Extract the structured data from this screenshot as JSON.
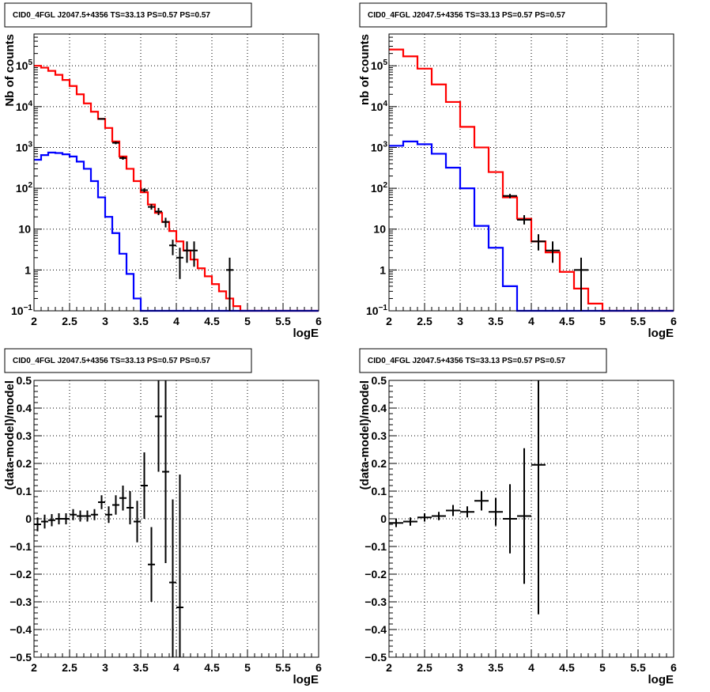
{
  "chart_data": [
    {
      "type": "histogram",
      "title": "CID0_4FGL J2047.5+4356 TS=33.13 PS=0.57 PS=0.57",
      "xlabel": "logE",
      "ylabel": "Nb of counts",
      "xlim": [
        2,
        6
      ],
      "ylim": [
        0.1,
        600000
      ],
      "yscale": "log",
      "grid": true,
      "xticks": [
        "2",
        "2.5",
        "3",
        "3.5",
        "4",
        "4.5",
        "5",
        "5.5",
        "6"
      ],
      "yticks": [
        {
          "v": 0.1,
          "t": "10",
          "sup": "−1"
        },
        {
          "v": 1,
          "t": "1",
          "sup": ""
        },
        {
          "v": 10,
          "t": "10",
          "sup": ""
        },
        {
          "v": 100,
          "t": "10",
          "sup": "2"
        },
        {
          "v": 1000,
          "t": "10",
          "sup": "3"
        },
        {
          "v": 10000,
          "t": "10",
          "sup": "4"
        },
        {
          "v": 100000,
          "t": "10",
          "sup": "5"
        }
      ],
      "bin_edges": [
        2.0,
        2.1,
        2.2,
        2.3,
        2.4,
        2.5,
        2.6,
        2.7,
        2.8,
        2.9,
        3.0,
        3.1,
        3.2,
        3.3,
        3.4,
        3.5,
        3.6,
        3.7,
        3.8,
        3.9,
        4.0,
        4.1,
        4.2,
        4.3,
        4.4,
        4.5,
        4.6,
        4.7,
        4.8,
        4.9,
        5.0,
        5.1,
        5.2,
        5.3,
        5.4,
        5.5,
        5.6,
        5.7,
        5.8,
        5.9,
        6.0
      ],
      "series": [
        {
          "name": "",
          "color": "#ff0000",
          "values": [
            100000,
            90000,
            75000,
            60000,
            45000,
            32000,
            20000,
            12000,
            7500,
            5000,
            3000,
            1400,
            600,
            300,
            150,
            80,
            40,
            25,
            15,
            9,
            5,
            3,
            1.8,
            1.1,
            0.7,
            0.45,
            0.3,
            0.2,
            0.13,
            0.1,
            0.1,
            0.1,
            0.1,
            0.1,
            0.1,
            0.1,
            0.1,
            0.1,
            0.1,
            0.1
          ]
        },
        {
          "name": "",
          "color": "#0000ff",
          "values": [
            500,
            650,
            750,
            730,
            680,
            600,
            450,
            300,
            150,
            60,
            20,
            8,
            2.5,
            0.8,
            0.2,
            0.1,
            0.1,
            0.1,
            0.1,
            0.1,
            0.1,
            0.1,
            0.1,
            0.1,
            0.1,
            0.1,
            0.1,
            0.1,
            0.1,
            0.1,
            0.1,
            0.1,
            0.1,
            0.1,
            0.1,
            0.1,
            0.1,
            0.1,
            0.1,
            0.1
          ]
        }
      ],
      "points": [
        {
          "x": 2.95,
          "y": 5000,
          "xerr": 0.05,
          "ylo": 4800,
          "yhi": 5200
        },
        {
          "x": 3.15,
          "y": 1300,
          "xerr": 0.05,
          "ylo": 1200,
          "yhi": 1400
        },
        {
          "x": 3.25,
          "y": 550,
          "xerr": 0.05,
          "ylo": 500,
          "yhi": 600
        },
        {
          "x": 3.55,
          "y": 90,
          "xerr": 0.05,
          "ylo": 80,
          "yhi": 100
        },
        {
          "x": 3.65,
          "y": 35,
          "xerr": 0.05,
          "ylo": 30,
          "yhi": 41
        },
        {
          "x": 3.75,
          "y": 27,
          "xerr": 0.05,
          "ylo": 22,
          "yhi": 33
        },
        {
          "x": 3.85,
          "y": 15,
          "xerr": 0.05,
          "ylo": 11,
          "yhi": 19
        },
        {
          "x": 3.95,
          "y": 4,
          "xerr": 0.05,
          "ylo": 2.3,
          "yhi": 5.5
        },
        {
          "x": 4.05,
          "y": 2,
          "xerr": 0.05,
          "ylo": 0.6,
          "yhi": 3.5
        },
        {
          "x": 4.15,
          "y": 3,
          "xerr": 0.05,
          "ylo": 1.5,
          "yhi": 5
        },
        {
          "x": 4.25,
          "y": 3,
          "xerr": 0.05,
          "ylo": 1.2,
          "yhi": 5
        },
        {
          "x": 4.75,
          "y": 1,
          "xerr": 0.05,
          "ylo": 0.1,
          "yhi": 2
        }
      ]
    },
    {
      "type": "histogram",
      "title": "CID0_4FGL J2047.5+4356 TS=33.13 PS=0.57 PS=0.57",
      "xlabel": "logE",
      "ylabel": "nb of counts",
      "xlim": [
        2,
        6
      ],
      "ylim": [
        0.1,
        600000
      ],
      "yscale": "log",
      "grid": true,
      "xticks": [
        "2",
        "2.5",
        "3",
        "3.5",
        "4",
        "4.5",
        "5",
        "5.5",
        "6"
      ],
      "yticks": [
        {
          "v": 0.1,
          "t": "10",
          "sup": "−1"
        },
        {
          "v": 1,
          "t": "1",
          "sup": ""
        },
        {
          "v": 10,
          "t": "10",
          "sup": ""
        },
        {
          "v": 100,
          "t": "10",
          "sup": "2"
        },
        {
          "v": 1000,
          "t": "10",
          "sup": "3"
        },
        {
          "v": 10000,
          "t": "10",
          "sup": "4"
        },
        {
          "v": 100000,
          "t": "10",
          "sup": "5"
        }
      ],
      "bin_edges": [
        2.0,
        2.2,
        2.4,
        2.6,
        2.8,
        3.0,
        3.2,
        3.4,
        3.6,
        3.8,
        4.0,
        4.2,
        4.4,
        4.6,
        4.8,
        5.0,
        5.2,
        5.4,
        5.6,
        5.8,
        6.0
      ],
      "series": [
        {
          "name": "",
          "color": "#ff0000",
          "values": [
            250000,
            170000,
            85000,
            35000,
            13000,
            3200,
            1000,
            250,
            60,
            18,
            5,
            2.7,
            0.9,
            0.35,
            0.15,
            0.1,
            0.1,
            0.1,
            0.1,
            0.1
          ]
        },
        {
          "name": "",
          "color": "#0000ff",
          "values": [
            1100,
            1400,
            1200,
            700,
            320,
            100,
            12,
            3.5,
            0.4,
            0.1,
            0.1,
            0.1,
            0.1,
            0.1,
            0.1,
            0.1,
            0.1,
            0.1,
            0.1,
            0.1
          ]
        }
      ],
      "points": [
        {
          "x": 3.7,
          "y": 65,
          "xerr": 0.1,
          "ylo": 57,
          "yhi": 73
        },
        {
          "x": 3.9,
          "y": 17,
          "xerr": 0.1,
          "ylo": 13,
          "yhi": 22
        },
        {
          "x": 4.1,
          "y": 5,
          "xerr": 0.1,
          "ylo": 3,
          "yhi": 7.5
        },
        {
          "x": 4.3,
          "y": 3,
          "xerr": 0.1,
          "ylo": 1.5,
          "yhi": 5
        },
        {
          "x": 4.7,
          "y": 1,
          "xerr": 0.1,
          "ylo": 0.1,
          "yhi": 2
        }
      ]
    },
    {
      "type": "scatter",
      "title": "CID0_4FGL J2047.5+4356 TS=33.13 PS=0.57 PS=0.57",
      "xlabel": "logE",
      "ylabel": "(data-model)/model",
      "xlim": [
        2,
        6
      ],
      "ylim": [
        -0.5,
        0.5
      ],
      "grid": true,
      "xticks": [
        "2",
        "2.5",
        "3",
        "3.5",
        "4",
        "4.5",
        "5",
        "5.5",
        "6"
      ],
      "yticks": [
        "−0.5",
        "−0.4",
        "−0.3",
        "−0.2",
        "−0.1",
        "0",
        "0.1",
        "0.2",
        "0.3",
        "0.4",
        "0.5"
      ],
      "points": [
        {
          "x": 2.05,
          "y": -0.02,
          "xerr": 0.05,
          "yerr": 0.025
        },
        {
          "x": 2.15,
          "y": -0.01,
          "xerr": 0.05,
          "yerr": 0.025
        },
        {
          "x": 2.25,
          "y": -0.005,
          "xerr": 0.05,
          "yerr": 0.022
        },
        {
          "x": 2.35,
          "y": 0.0,
          "xerr": 0.05,
          "yerr": 0.02
        },
        {
          "x": 2.45,
          "y": 0.0,
          "xerr": 0.05,
          "yerr": 0.02
        },
        {
          "x": 2.55,
          "y": 0.015,
          "xerr": 0.05,
          "yerr": 0.02
        },
        {
          "x": 2.65,
          "y": 0.01,
          "xerr": 0.05,
          "yerr": 0.02
        },
        {
          "x": 2.75,
          "y": 0.01,
          "xerr": 0.05,
          "yerr": 0.02
        },
        {
          "x": 2.85,
          "y": 0.015,
          "xerr": 0.05,
          "yerr": 0.02
        },
        {
          "x": 2.95,
          "y": 0.06,
          "xerr": 0.05,
          "yerr": 0.025
        },
        {
          "x": 3.05,
          "y": 0.015,
          "xerr": 0.05,
          "yerr": 0.03
        },
        {
          "x": 3.15,
          "y": 0.05,
          "xerr": 0.05,
          "yerr": 0.035
        },
        {
          "x": 3.25,
          "y": 0.075,
          "xerr": 0.05,
          "yerr": 0.045
        },
        {
          "x": 3.35,
          "y": 0.04,
          "xerr": 0.05,
          "yerr": 0.06
        },
        {
          "x": 3.45,
          "y": -0.01,
          "xerr": 0.05,
          "yerr": 0.075
        },
        {
          "x": 3.55,
          "y": 0.12,
          "xerr": 0.05,
          "yerr": 0.12
        },
        {
          "x": 3.65,
          "y": -0.165,
          "xerr": 0.05,
          "yerr": 0.135
        },
        {
          "x": 3.75,
          "y": 0.37,
          "xerr": 0.05,
          "yerr": 0.2
        },
        {
          "x": 3.85,
          "y": 0.17,
          "xerr": 0.05,
          "yerr": 0.33
        },
        {
          "x": 3.95,
          "y": -0.23,
          "xerr": 0.05,
          "yerr": 0.3
        },
        {
          "x": 4.05,
          "y": -0.32,
          "xerr": 0.05,
          "yerr": 0.48
        }
      ]
    },
    {
      "type": "scatter",
      "title": "CID0_4FGL J2047.5+4356 TS=33.13 PS=0.57 PS=0.57",
      "xlabel": "logE",
      "ylabel": "(data-model)/model",
      "xlim": [
        2,
        6
      ],
      "ylim": [
        -0.5,
        0.5
      ],
      "grid": true,
      "xticks": [
        "2",
        "2.5",
        "3",
        "3.5",
        "4",
        "4.5",
        "5",
        "5.5",
        "6"
      ],
      "yticks": [
        "−0.5",
        "−0.4",
        "−0.3",
        "−0.2",
        "−0.1",
        "0",
        "0.1",
        "0.2",
        "0.3",
        "0.4",
        "0.5"
      ],
      "points": [
        {
          "x": 2.1,
          "y": -0.015,
          "xerr": 0.1,
          "yerr": 0.015
        },
        {
          "x": 2.3,
          "y": -0.01,
          "xerr": 0.1,
          "yerr": 0.015
        },
        {
          "x": 2.5,
          "y": 0.005,
          "xerr": 0.1,
          "yerr": 0.015
        },
        {
          "x": 2.7,
          "y": 0.01,
          "xerr": 0.1,
          "yerr": 0.015
        },
        {
          "x": 2.9,
          "y": 0.03,
          "xerr": 0.1,
          "yerr": 0.02
        },
        {
          "x": 3.1,
          "y": 0.025,
          "xerr": 0.1,
          "yerr": 0.02
        },
        {
          "x": 3.3,
          "y": 0.065,
          "xerr": 0.1,
          "yerr": 0.035
        },
        {
          "x": 3.5,
          "y": 0.025,
          "xerr": 0.1,
          "yerr": 0.05
        },
        {
          "x": 3.7,
          "y": 0.0,
          "xerr": 0.1,
          "yerr": 0.125
        },
        {
          "x": 3.9,
          "y": 0.01,
          "xerr": 0.1,
          "yerr": 0.245
        },
        {
          "x": 4.1,
          "y": 0.195,
          "xerr": 0.1,
          "yerr": 0.54
        }
      ]
    }
  ]
}
